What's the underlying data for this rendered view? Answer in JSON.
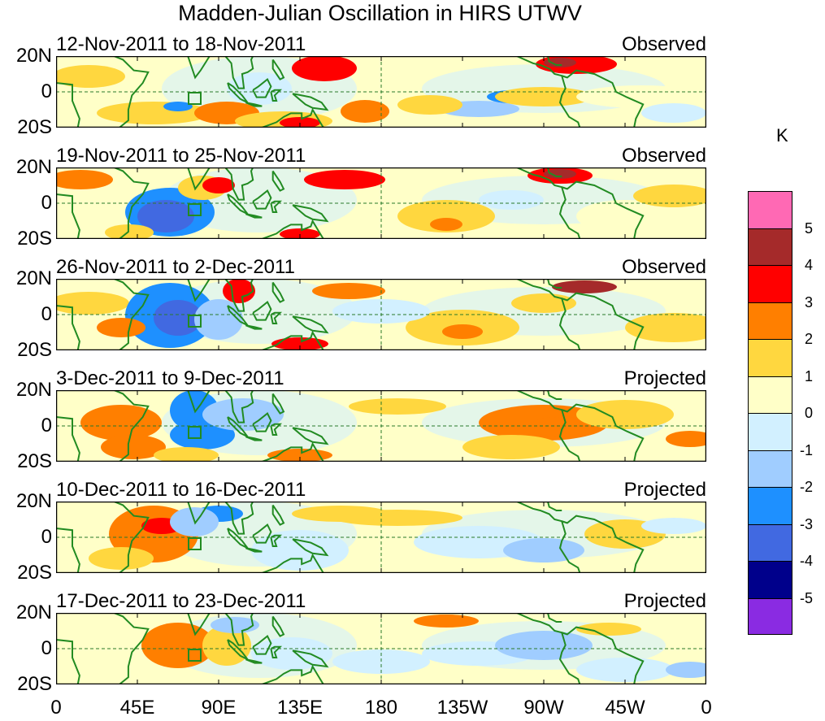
{
  "title": "Madden-Julian Oscillation in HIRS UTWV",
  "panels": [
    {
      "date_range": "12-Nov-2011 to 18-Nov-2011",
      "type": "Observed"
    },
    {
      "date_range": "19-Nov-2011 to 25-Nov-2011",
      "type": "Observed"
    },
    {
      "date_range": "26-Nov-2011 to 2-Dec-2011",
      "type": "Observed"
    },
    {
      "date_range": "3-Dec-2011 to 9-Dec-2011",
      "type": "Projected"
    },
    {
      "date_range": "10-Dec-2011 to 16-Dec-2011",
      "type": "Projected"
    },
    {
      "date_range": "17-Dec-2011 to 23-Dec-2011",
      "type": "Projected"
    }
  ],
  "lat_labels": [
    "20N",
    "0",
    "20S"
  ],
  "lon_labels": [
    "0",
    "45E",
    "90E",
    "135E",
    "180",
    "135W",
    "90W",
    "45W",
    "0"
  ],
  "colorbar": {
    "unit": "K",
    "labels": [
      "5",
      "4",
      "3",
      "2",
      "1",
      "0",
      "-1",
      "-2",
      "-3",
      "-4",
      "-5"
    ],
    "colors": [
      "#ff69b4",
      "#a52a2a",
      "#ff0000",
      "#ff7f00",
      "#ffd73f",
      "#ffffc8",
      "#d2f0ff",
      "#a0cdff",
      "#1e90ff",
      "#4169e1",
      "#00008b",
      "#8a2be2"
    ]
  },
  "map_colors": {
    "land": "#228b22",
    "neutral": "#ffffff"
  }
}
